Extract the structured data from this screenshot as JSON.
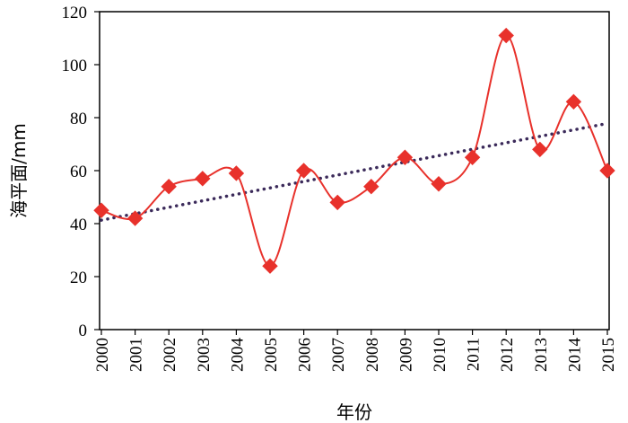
{
  "chart_data": {
    "type": "line",
    "xlabel": "年份",
    "ylabel": "海平面/mm",
    "ylim": [
      0,
      120
    ],
    "yticks": [
      0,
      20,
      40,
      60,
      80,
      100,
      120
    ],
    "categories": [
      "2000",
      "2001",
      "2002",
      "2003",
      "2004",
      "2005",
      "2006",
      "2007",
      "2008",
      "2009",
      "2010",
      "2011",
      "2012",
      "2013",
      "2014",
      "2015"
    ],
    "series": [
      {
        "values": [
          45,
          42,
          54,
          57,
          59,
          24,
          60,
          48,
          54,
          65,
          55,
          65,
          111,
          68,
          86,
          60
        ],
        "color": "#e8312b",
        "marker": "diamond",
        "smooth": true
      }
    ],
    "trendline": {
      "style": "dotted",
      "color": "#3b2a5a",
      "type": "linear"
    },
    "grid": false,
    "legend": "none"
  }
}
